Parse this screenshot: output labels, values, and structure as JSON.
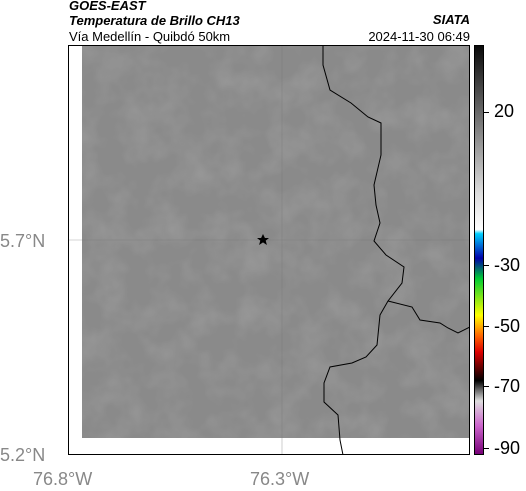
{
  "header": {
    "satellite": "GOES-EAST",
    "product": "Temperatura de Brillo CH13",
    "region": "Vía Medellín - Quibdó 50km",
    "agency": "SIATA",
    "datetime": "2024-11-30 06:49"
  },
  "map": {
    "lat_ticks": [
      "5.7°N",
      "5.2°N"
    ],
    "lon_ticks": [
      "76.8°W",
      "76.3°W"
    ],
    "marker": "star",
    "background_color": "#8a8a8a",
    "border_color": "#000000"
  },
  "colorbar": {
    "labels": [
      "20",
      "-30",
      "-50",
      "-70",
      "-90"
    ],
    "stops": [
      {
        "pos": 0.0,
        "color": "#0a0a0a"
      },
      {
        "pos": 0.36,
        "color": "#dcdcdc"
      },
      {
        "pos": 0.45,
        "color": "#ffffff"
      },
      {
        "pos": 0.46,
        "color": "#00d0ff"
      },
      {
        "pos": 0.52,
        "color": "#0000aa"
      },
      {
        "pos": 0.57,
        "color": "#00cc33"
      },
      {
        "pos": 0.66,
        "color": "#ffff00"
      },
      {
        "pos": 0.71,
        "color": "#ff6600"
      },
      {
        "pos": 0.75,
        "color": "#dd0000"
      },
      {
        "pos": 0.82,
        "color": "#000000"
      },
      {
        "pos": 0.87,
        "color": "#dddddd"
      },
      {
        "pos": 0.93,
        "color": "#cc66cc"
      },
      {
        "pos": 1.0,
        "color": "#770077"
      }
    ]
  }
}
